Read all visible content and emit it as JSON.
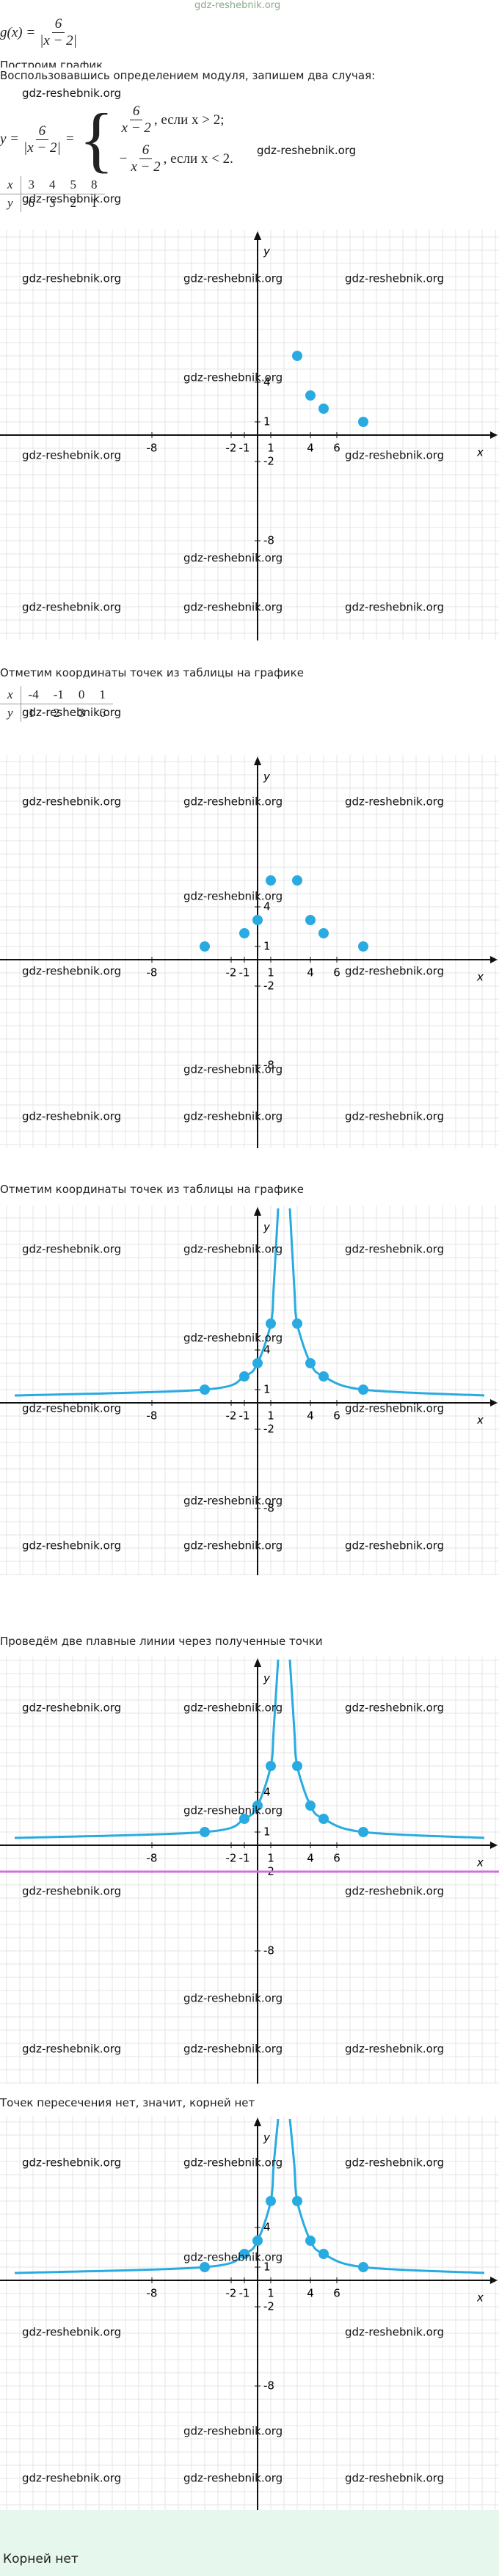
{
  "header_watermark": "gdz-reshebnik.org",
  "watermark": "gdz-reshebnik.org",
  "formula": {
    "lhs": "g(x) =",
    "numerator": "6",
    "denominator": "|x − 2|"
  },
  "steps": [
    "Построим график",
    "Воспользовавшись определением модуля, запишем два случая:"
  ],
  "piecewise": {
    "lhs": "y =",
    "numerator": "6",
    "denominator": "|x − 2|",
    "eq": "=",
    "cases": [
      {
        "sign": "",
        "numerator": "6",
        "denominator": "x − 2",
        "condition": ", если x > 2;"
      },
      {
        "sign": "−",
        "numerator": "6",
        "denominator": "x − 2",
        "condition": ", если x < 2."
      }
    ]
  },
  "tables": [
    {
      "x_header": "x",
      "x": [
        3,
        4,
        5,
        8
      ],
      "y_header": "y",
      "y": [
        6,
        3,
        2,
        1
      ]
    },
    {
      "x_header": "x",
      "x": [
        -4,
        -1,
        0,
        1
      ],
      "y_header": "y",
      "y": [
        1,
        2,
        3,
        6
      ]
    }
  ],
  "texts": [
    "Отметим координаты точек из таблицы на графике",
    "Отметим координаты точек из таблицы на графике",
    "Проведём две плавные линии через полученные точки",
    "Точек пересечения нет, значит, корней нет"
  ],
  "axes": {
    "x_label": "x",
    "y_label": "y",
    "xticks": [
      -8,
      -2,
      -1,
      1,
      4,
      6
    ],
    "yticks": [
      4,
      1,
      -2,
      -8
    ],
    "grid": true
  },
  "graphs": [
    {
      "curve": false
    },
    {
      "curve": false
    },
    {
      "curve": true
    },
    {
      "curve": true,
      "hline": -2
    },
    {
      "curve": true
    }
  ],
  "answer": "Корней нет"
}
